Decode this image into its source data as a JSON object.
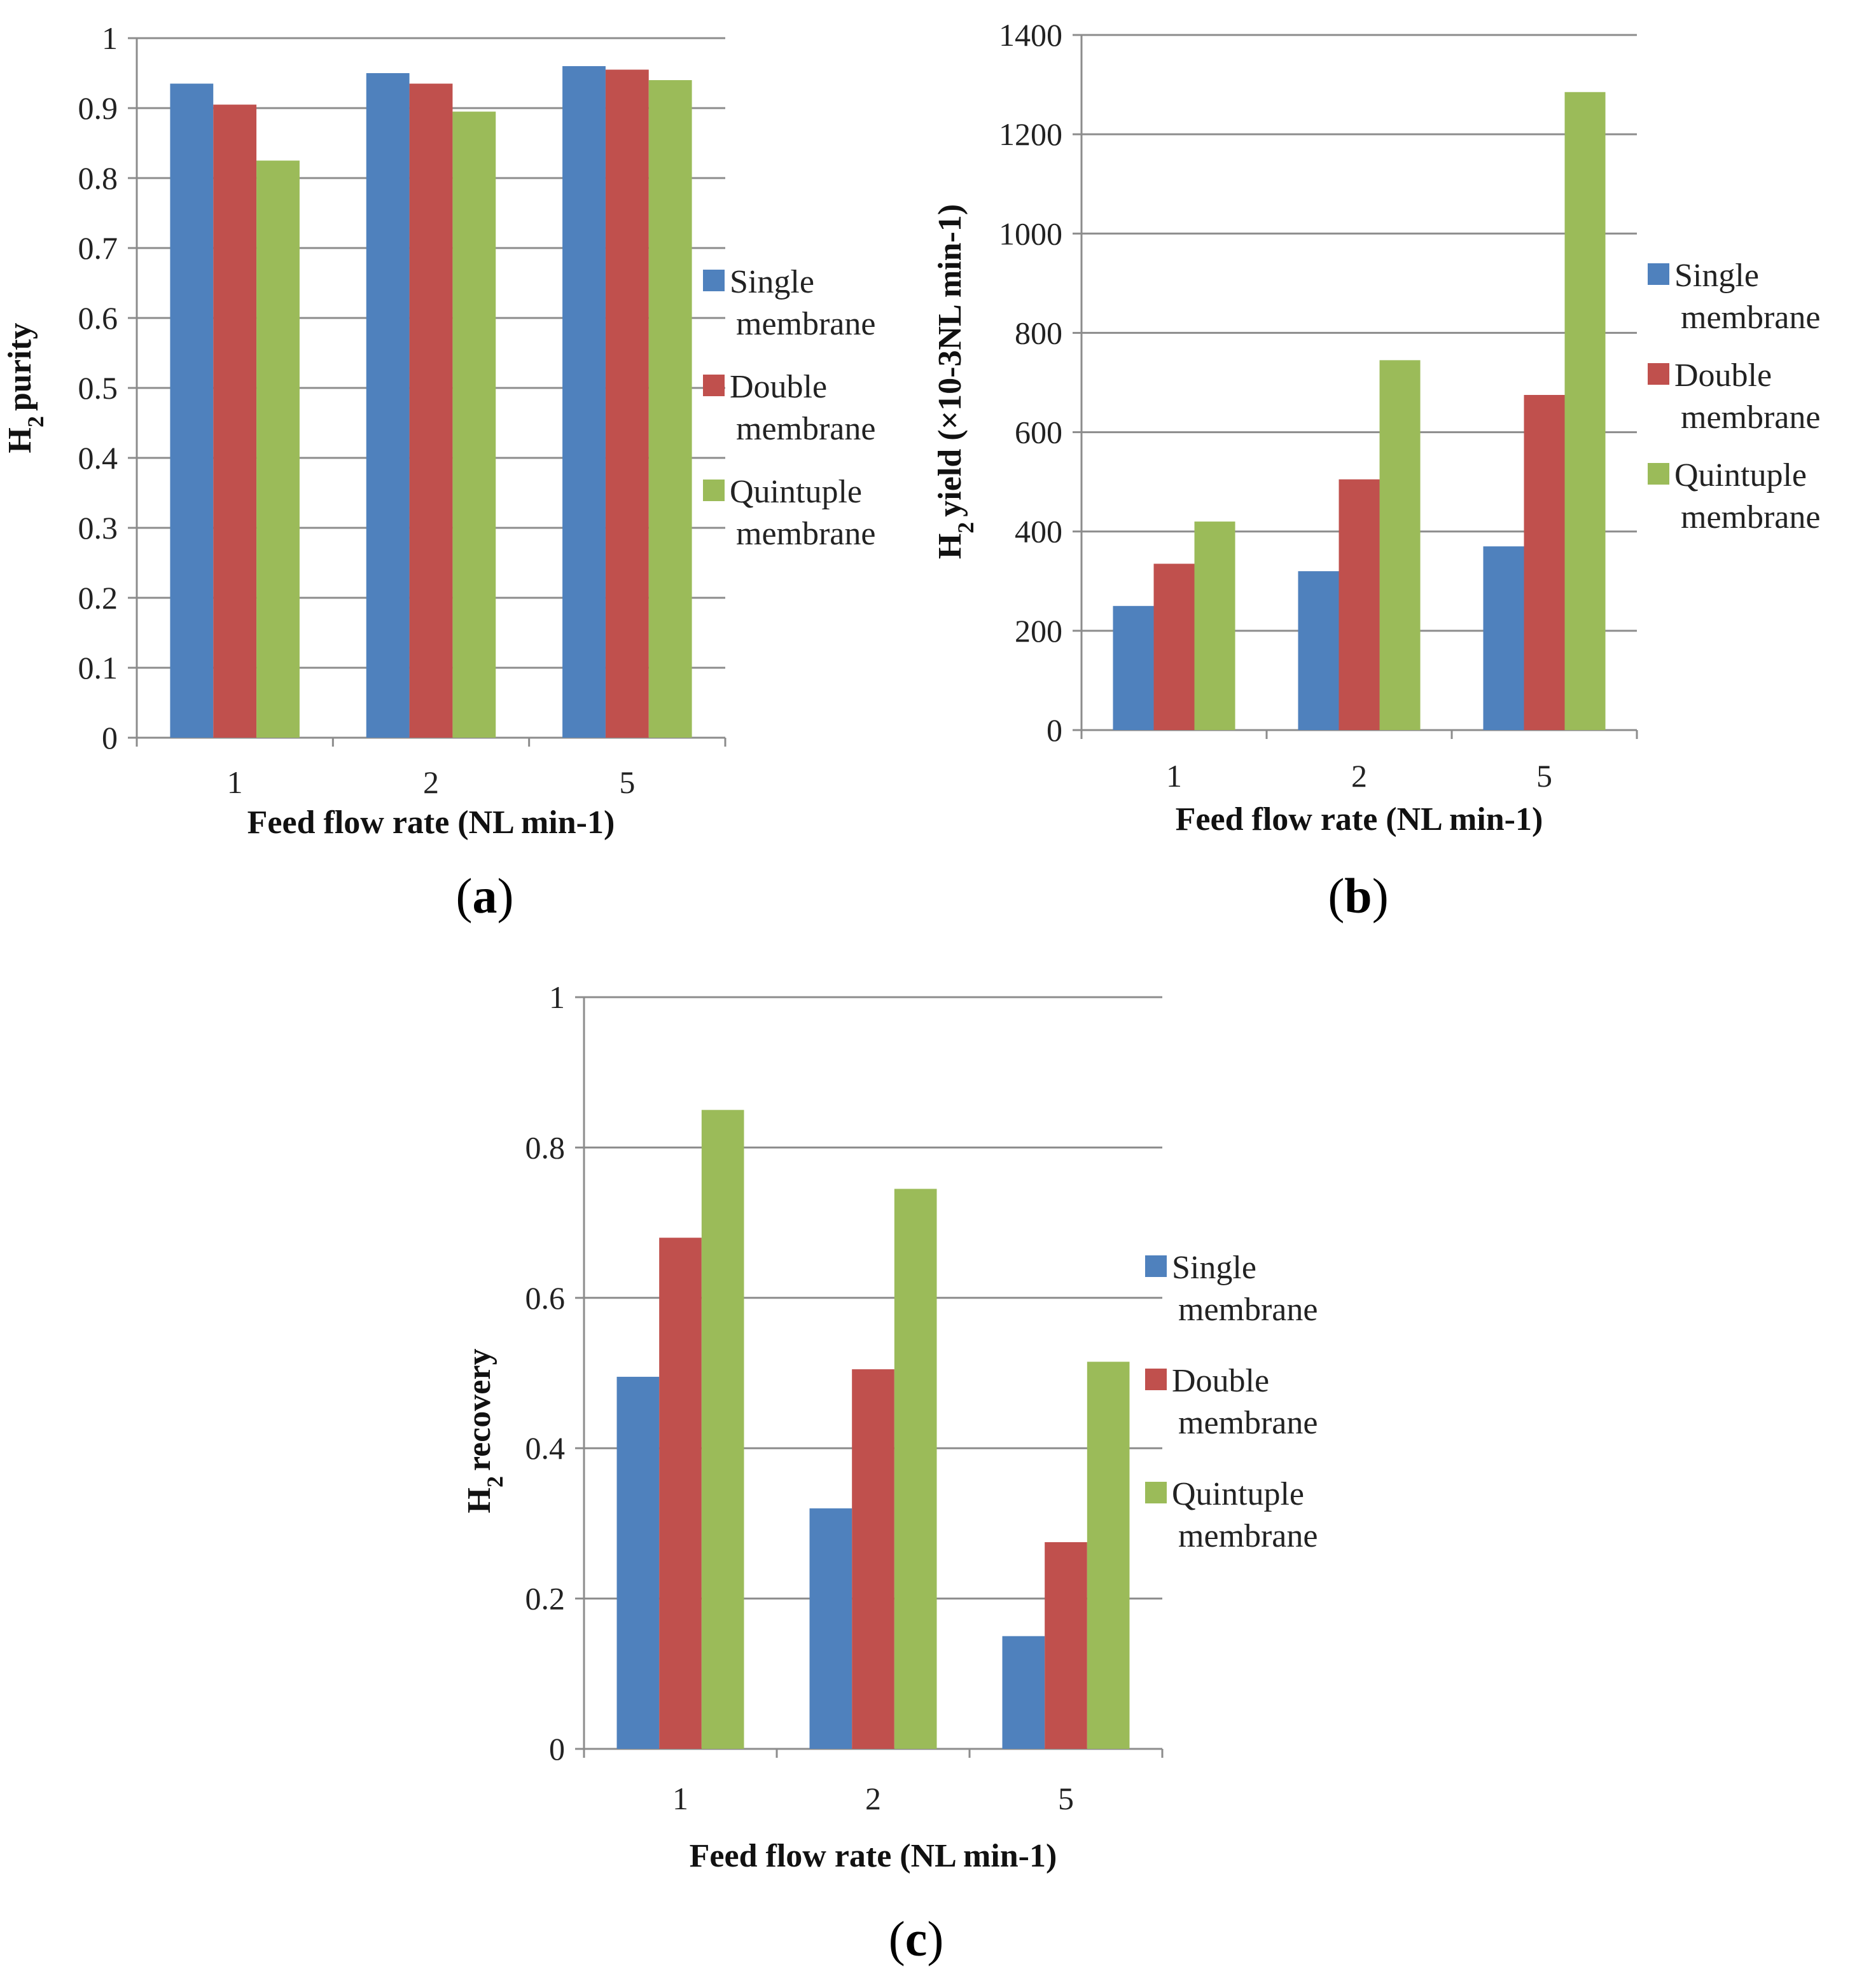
{
  "colors": {
    "single": "#4F81BD",
    "double": "#C0504D",
    "quintuple": "#9BBB59"
  },
  "chart_data": [
    {
      "id": "a",
      "type": "bar",
      "panel_label": "a",
      "title": "",
      "xlabel": "Feed flow rate (NL min-1)",
      "ylabel": "H2 purity",
      "ylabel_main": "H",
      "ylabel_sub": "2",
      "ylabel_rest": "purity",
      "categories": [
        "1",
        "2",
        "5"
      ],
      "ylim": [
        0,
        1
      ],
      "yticks": [
        "0",
        "0.1",
        "0.2",
        "0.3",
        "0.4",
        "0.5",
        "0.6",
        "0.7",
        "0.8",
        "0.9",
        "1"
      ],
      "ytick_values": [
        0,
        0.1,
        0.2,
        0.3,
        0.4,
        0.5,
        0.6,
        0.7,
        0.8,
        0.9,
        1
      ],
      "grid": true,
      "legend_position": "right",
      "series": [
        {
          "key": "single",
          "name": "Single membrane",
          "legend_lines": [
            "Single",
            "membrane"
          ],
          "values": [
            0.935,
            0.95,
            0.96
          ]
        },
        {
          "key": "double",
          "name": "Double membrane",
          "legend_lines": [
            "Double",
            "membrane"
          ],
          "values": [
            0.905,
            0.935,
            0.955
          ]
        },
        {
          "key": "quintuple",
          "name": "Quintuple membrane",
          "legend_lines": [
            "Quintuple",
            "membrane"
          ],
          "values": [
            0.825,
            0.895,
            0.94
          ]
        }
      ]
    },
    {
      "id": "b",
      "type": "bar",
      "panel_label": "b",
      "title": "",
      "xlabel": "Feed flow rate (NL min-1)",
      "ylabel": "H2 yield (×10-3NL min-1)",
      "ylabel_main": "H",
      "ylabel_sub": "2",
      "ylabel_rest": "yield (×10-3NL min-1)",
      "categories": [
        "1",
        "2",
        "5"
      ],
      "ylim": [
        0,
        1400
      ],
      "yticks": [
        "0",
        "200",
        "400",
        "600",
        "800",
        "1000",
        "1200",
        "1400"
      ],
      "ytick_values": [
        0,
        200,
        400,
        600,
        800,
        1000,
        1200,
        1400
      ],
      "grid": true,
      "legend_position": "right",
      "series": [
        {
          "key": "single",
          "name": "Single membrane",
          "legend_lines": [
            "Single",
            "membrane"
          ],
          "values": [
            250,
            320,
            370
          ]
        },
        {
          "key": "double",
          "name": "Double membrane",
          "legend_lines": [
            "Double",
            "membrane"
          ],
          "values": [
            335,
            505,
            675
          ]
        },
        {
          "key": "quintuple",
          "name": "Quintuple membrane",
          "legend_lines": [
            "Quintuple",
            "membrane"
          ],
          "values": [
            420,
            745,
            1285
          ]
        }
      ]
    },
    {
      "id": "c",
      "type": "bar",
      "panel_label": "c",
      "title": "",
      "xlabel": "Feed flow rate (NL min-1)",
      "ylabel": "H2 recovery",
      "ylabel_main": "H",
      "ylabel_sub": "2",
      "ylabel_rest": "recovery",
      "categories": [
        "1",
        "2",
        "5"
      ],
      "ylim": [
        0,
        1
      ],
      "yticks": [
        "0",
        "0.2",
        "0.4",
        "0.6",
        "0.8",
        "1"
      ],
      "ytick_values": [
        0,
        0.2,
        0.4,
        0.6,
        0.8,
        1
      ],
      "grid": true,
      "legend_position": "right",
      "series": [
        {
          "key": "single",
          "name": "Single membrane",
          "legend_lines": [
            "Single",
            "membrane"
          ],
          "values": [
            0.495,
            0.32,
            0.15
          ]
        },
        {
          "key": "double",
          "name": "Double membrane",
          "legend_lines": [
            "Double",
            "membrane"
          ],
          "values": [
            0.68,
            0.505,
            0.275
          ]
        },
        {
          "key": "quintuple",
          "name": "Quintuple membrane",
          "legend_lines": [
            "Quintuple",
            "membrane"
          ],
          "values": [
            0.85,
            0.745,
            0.515
          ]
        }
      ]
    }
  ]
}
